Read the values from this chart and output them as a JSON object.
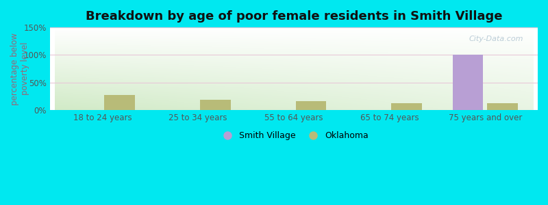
{
  "title": "Breakdown by age of poor female residents in Smith Village",
  "ylabel": "percentage below\npoverty level",
  "categories": [
    "18 to 24 years",
    "25 to 34 years",
    "55 to 64 years",
    "65 to 74 years",
    "75 years and over"
  ],
  "smith_village_values": [
    0,
    0,
    0,
    0,
    100
  ],
  "oklahoma_values": [
    27,
    19,
    16,
    13,
    13
  ],
  "smith_village_color": "#b89fd4",
  "oklahoma_color": "#b8bb78",
  "outer_bg": "#00e8f0",
  "ylim": [
    0,
    150
  ],
  "yticks": [
    0,
    50,
    100,
    150
  ],
  "ytick_labels": [
    "0%",
    "50%",
    "100%",
    "150%"
  ],
  "bar_width": 0.32,
  "legend_labels": [
    "Smith Village",
    "Oklahoma"
  ],
  "watermark": "City-Data.com",
  "title_fontsize": 13,
  "axis_label_fontsize": 8.5,
  "tick_fontsize": 8.5,
  "grid_color": "#e8c8d8",
  "ylabel_color": "#996677"
}
